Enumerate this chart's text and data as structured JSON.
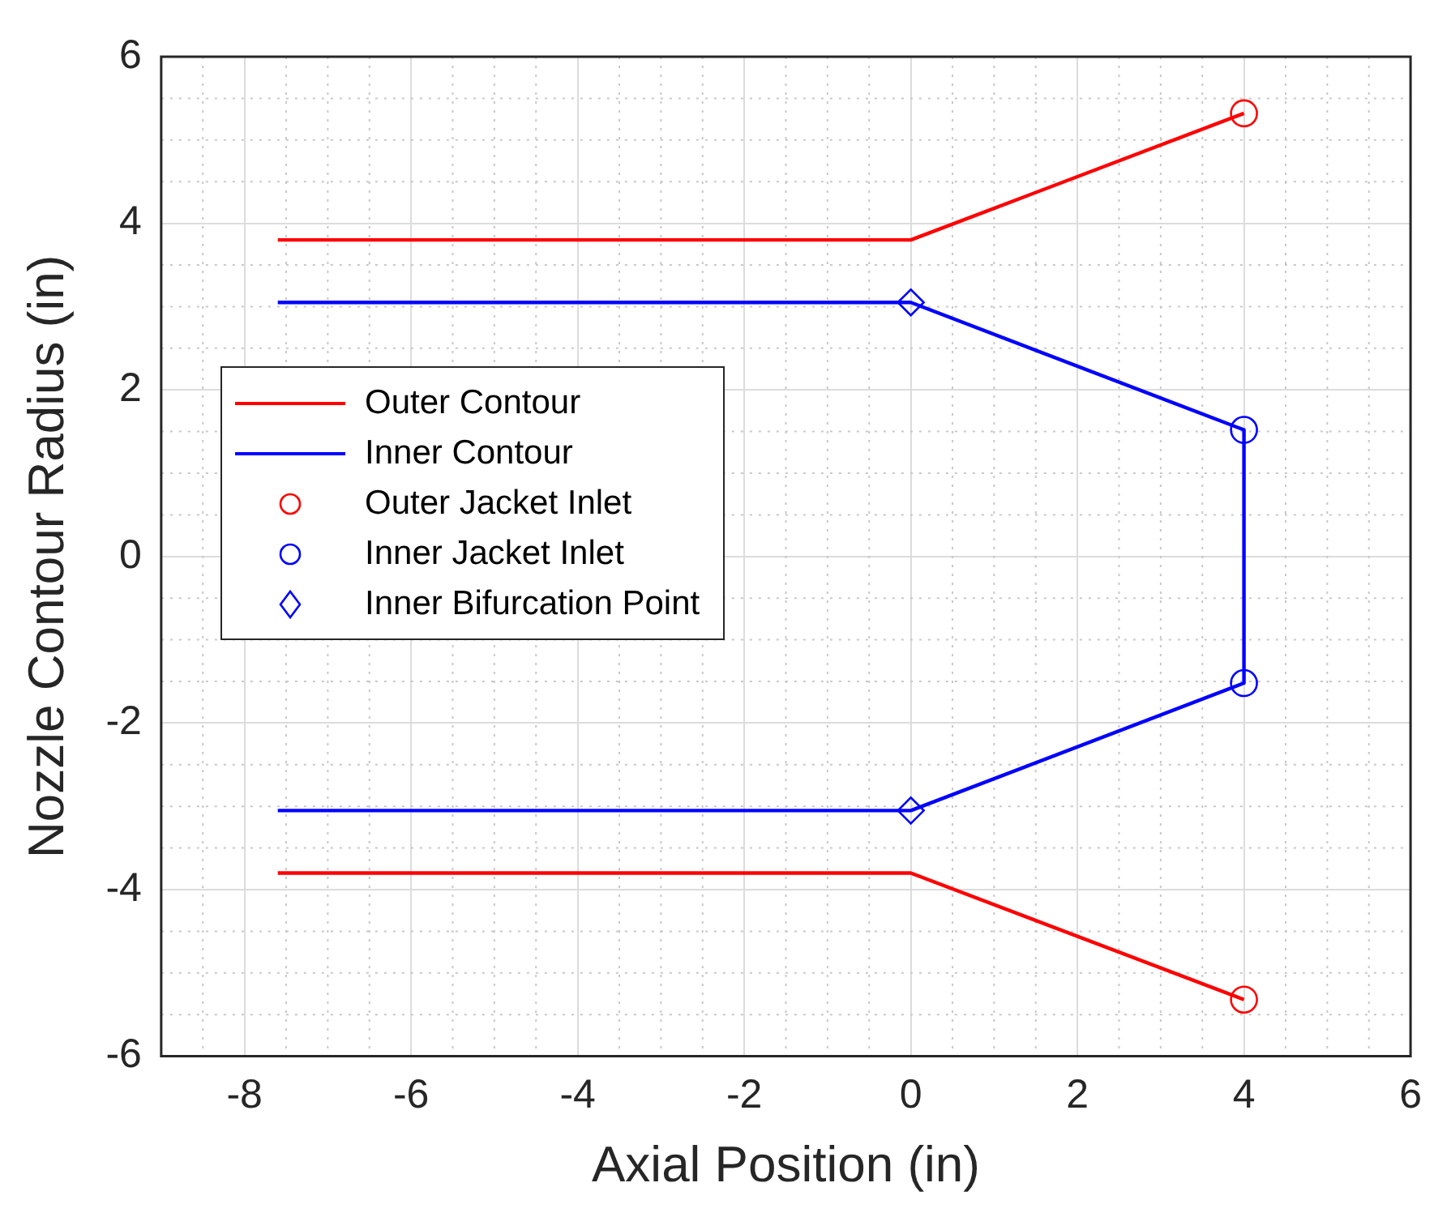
{
  "chart_data": {
    "type": "line",
    "xlabel": "Axial Position (in)",
    "ylabel": "Nozzle Contour Radius (in)",
    "xlim": [
      -9,
      6
    ],
    "xticks": [
      -8,
      -6,
      -4,
      -2,
      0,
      2,
      4,
      6
    ],
    "ylim": [
      -6,
      6
    ],
    "yticks": [
      -6,
      -4,
      -2,
      0,
      2,
      4,
      6
    ],
    "grid": true,
    "legend": "left",
    "series": [
      {
        "name": "Outer Contour",
        "color": "#ff0000",
        "marker": "none",
        "line_style": "solid",
        "x": [
          -7.6,
          0,
          4,
          null,
          -7.6,
          0,
          4
        ],
        "values": [
          3.8,
          3.8,
          5.32,
          null,
          -3.8,
          -3.8,
          -5.32
        ]
      },
      {
        "name": "Inner Contour",
        "color": "#0000ff",
        "marker": "none",
        "line_style": "solid",
        "x": [
          -7.6,
          0,
          4,
          4,
          0,
          -7.6
        ],
        "values": [
          3.05,
          3.05,
          1.52,
          -1.52,
          -3.05,
          -3.05
        ]
      },
      {
        "name": "Outer Jacket Inlet",
        "type": "scatter",
        "color": "#ff0000",
        "marker": "circle",
        "x": [
          4,
          4
        ],
        "values": [
          5.32,
          -5.32
        ]
      },
      {
        "name": "Inner Jacket Inlet",
        "type": "scatter",
        "color": "#0000ff",
        "marker": "circle",
        "x": [
          4,
          4
        ],
        "values": [
          1.52,
          -1.52
        ]
      },
      {
        "name": "Inner Bifurcation Point",
        "type": "scatter",
        "color": "#0000ff",
        "marker": "diamond",
        "x": [
          0,
          0
        ],
        "values": [
          3.05,
          -3.05
        ]
      }
    ]
  }
}
